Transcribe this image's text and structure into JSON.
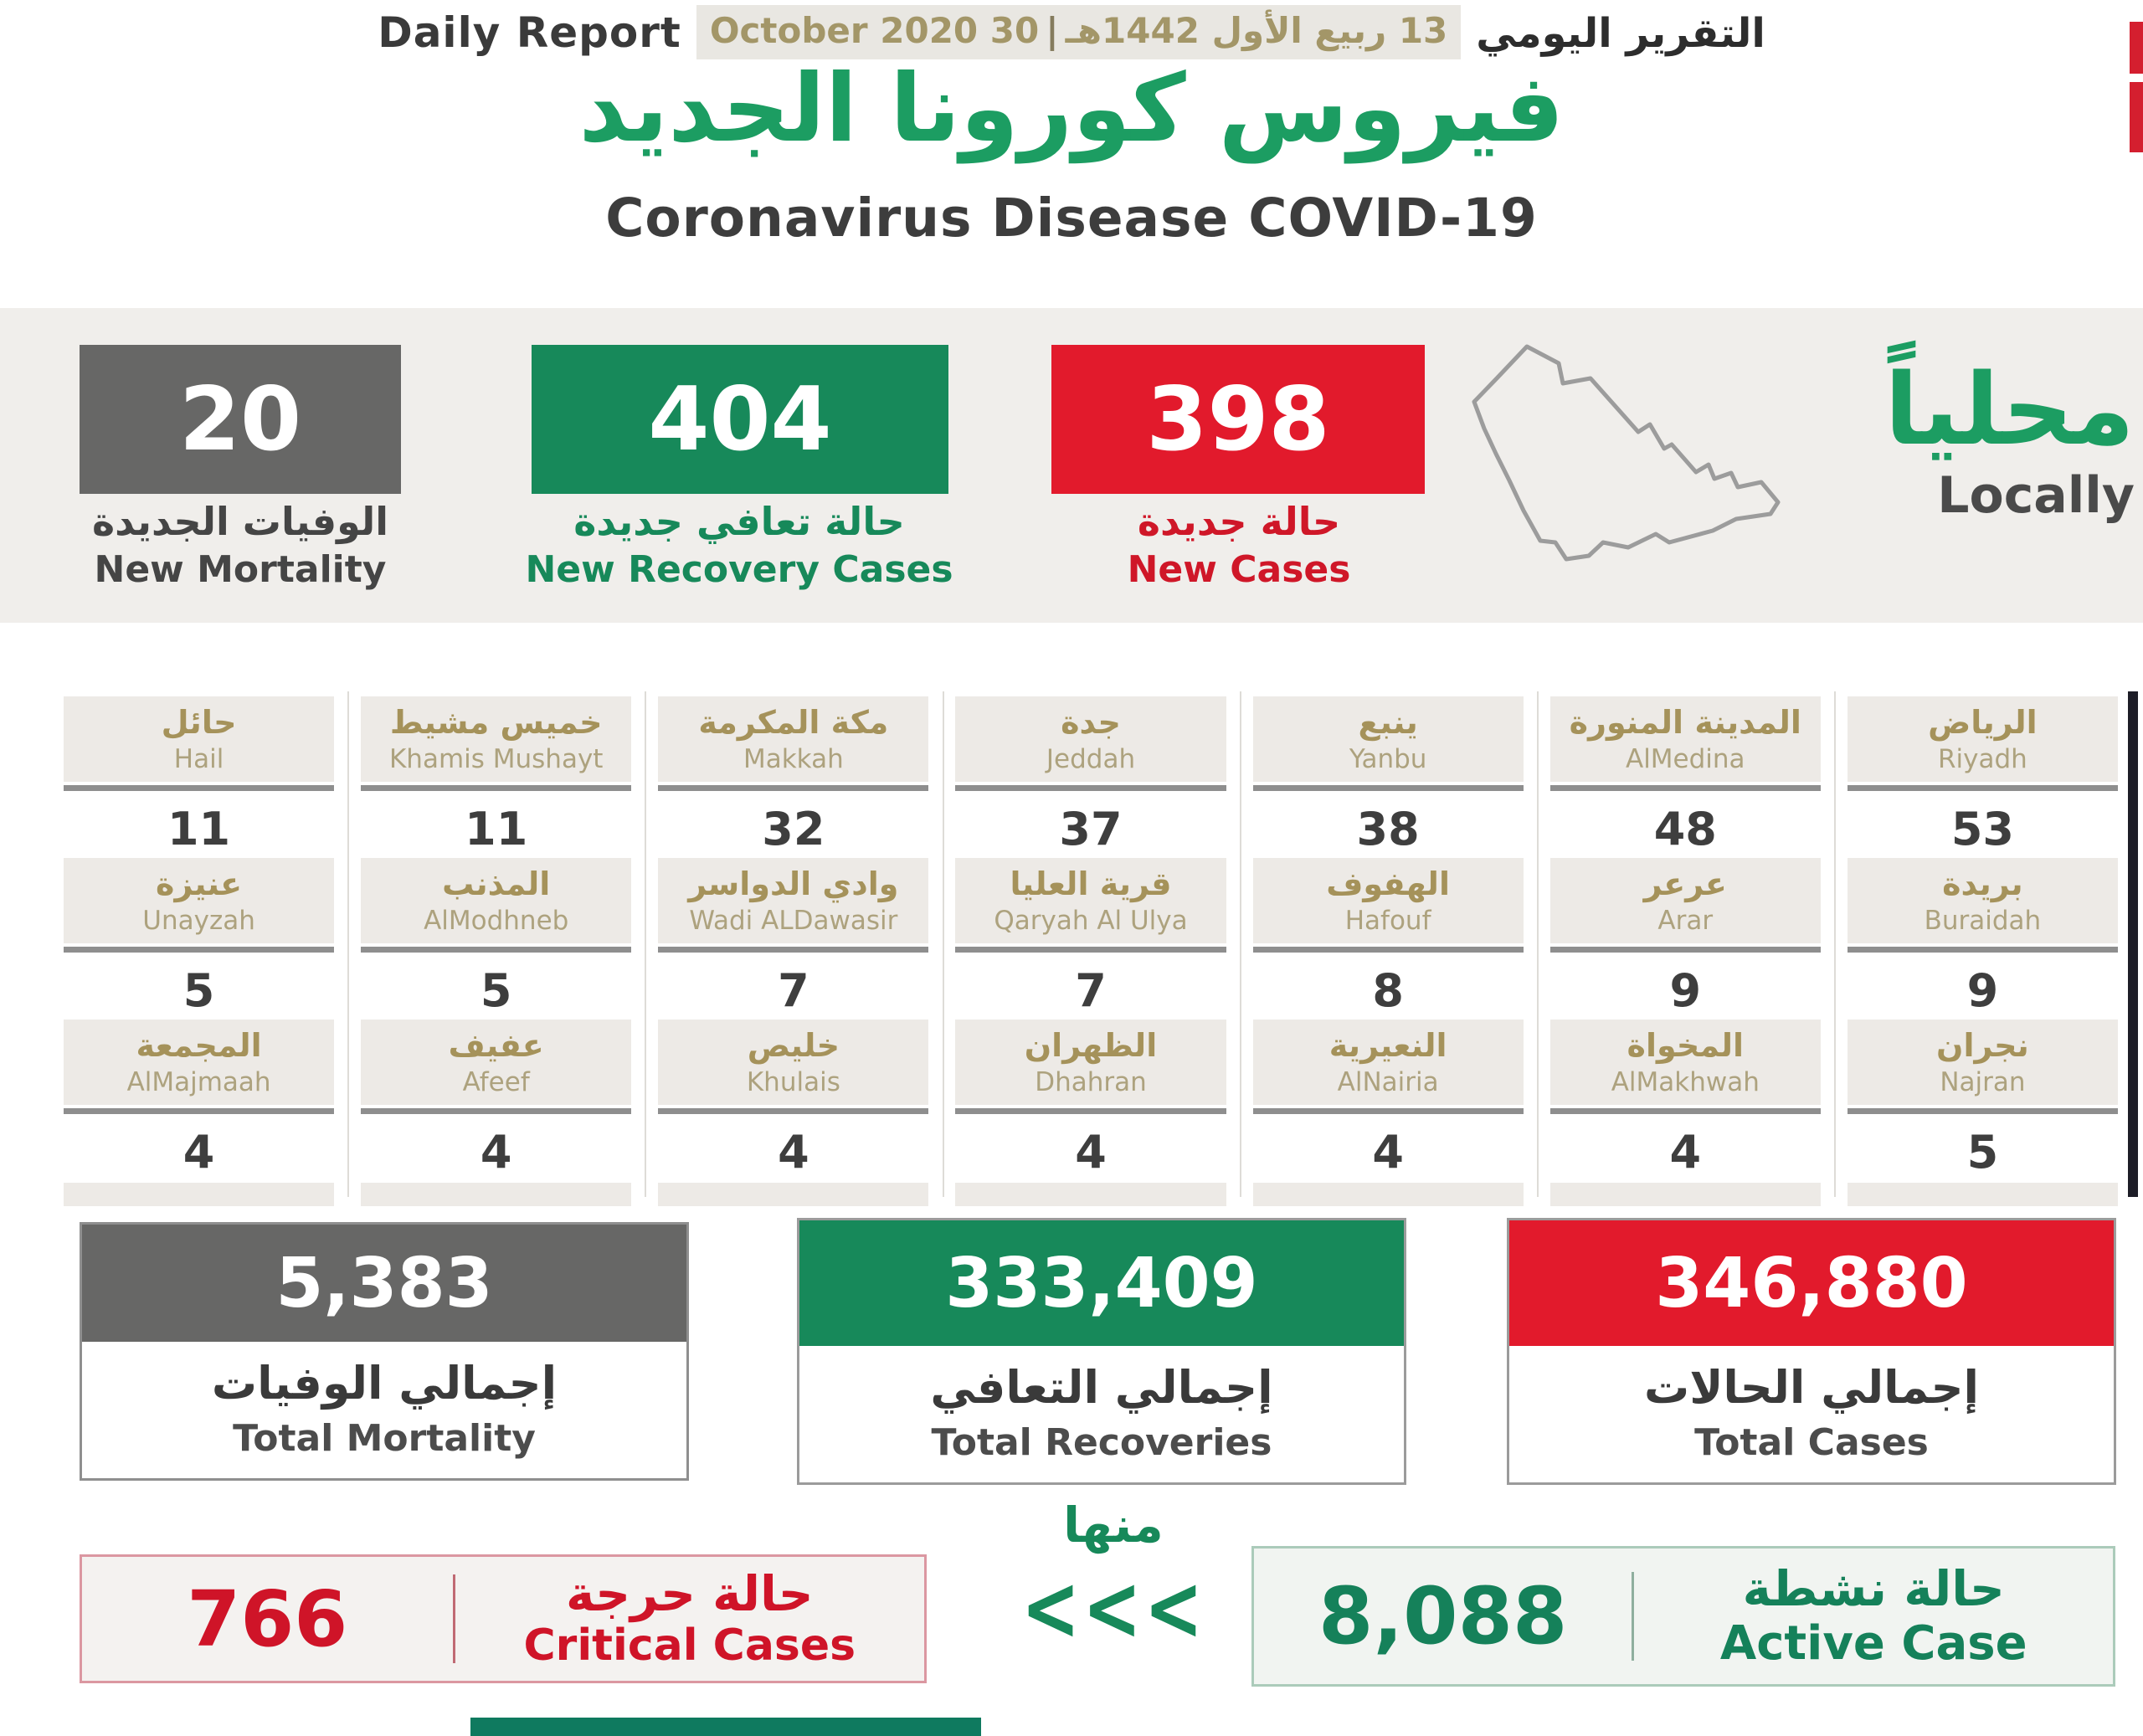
{
  "header": {
    "report_label_en": "Daily Report",
    "date_gregorian": "30 October 2020",
    "date_pipe": "|",
    "date_hijri": "13 ربيع الأول 1442هـ",
    "report_label_ar": "التقرير اليومي",
    "title_ar": "فيروس كورونا الجديد",
    "title_en": "Coronavirus Disease COVID-19"
  },
  "summary": {
    "new_mortality": {
      "value": "20",
      "label_ar": "الوفيات الجديدة",
      "label_en": "New Mortality"
    },
    "new_recovery": {
      "value": "404",
      "label_ar": "حالة تعافي جديدة",
      "label_en": "New Recovery Cases"
    },
    "new_cases": {
      "value": "398",
      "label_ar": "حالة جديدة",
      "label_en": "New Cases"
    },
    "locally_ar": "محلياً",
    "locally_en": "Locally"
  },
  "cities": {
    "rows": [
      [
        {
          "ar": "حائل",
          "en": "Hail",
          "value": "11"
        },
        {
          "ar": "خميس مشيط",
          "en": "Khamis Mushayt",
          "value": "11"
        },
        {
          "ar": "مكة المكرمة",
          "en": "Makkah",
          "value": "32"
        },
        {
          "ar": "جدة",
          "en": "Jeddah",
          "value": "37"
        },
        {
          "ar": "ينبع",
          "en": "Yanbu",
          "value": "38"
        },
        {
          "ar": "المدينة المنورة",
          "en": "AlMedina",
          "value": "48"
        },
        {
          "ar": "الرياض",
          "en": "Riyadh",
          "value": "53"
        }
      ],
      [
        {
          "ar": "عنيزة",
          "en": "Unayzah",
          "value": "5"
        },
        {
          "ar": "المذنب",
          "en": "AlModhneb",
          "value": "5"
        },
        {
          "ar": "وادي الدواسر",
          "en": "Wadi ALDawasir",
          "value": "7"
        },
        {
          "ar": "قرية العليا",
          "en": "Qaryah Al Ulya",
          "value": "7"
        },
        {
          "ar": "الهفوف",
          "en": "Hafouf",
          "value": "8"
        },
        {
          "ar": "عرعر",
          "en": "Arar",
          "value": "9"
        },
        {
          "ar": "بريدة",
          "en": "Buraidah",
          "value": "9"
        }
      ],
      [
        {
          "ar": "المجمعة",
          "en": "AlMajmaah",
          "value": "4"
        },
        {
          "ar": "عفيف",
          "en": "Afeef",
          "value": "4"
        },
        {
          "ar": "خليص",
          "en": "Khulais",
          "value": "4"
        },
        {
          "ar": "الظهران",
          "en": "Dhahran",
          "value": "4"
        },
        {
          "ar": "النعيرية",
          "en": "AlNairia",
          "value": "4"
        },
        {
          "ar": "المخواة",
          "en": "AlMakhwah",
          "value": "4"
        },
        {
          "ar": "نجران",
          "en": "Najran",
          "value": "5"
        }
      ]
    ],
    "cutoff_row_cells": 7
  },
  "totals": {
    "mortality": {
      "value": "5,383",
      "label_ar": "إجمالي الوفيات",
      "label_en": "Total Mortality"
    },
    "recoveries": {
      "value": "333,409",
      "label_ar": "إجمالي التعافي",
      "label_en": "Total Recoveries"
    },
    "cases": {
      "value": "346,880",
      "label_ar": "إجمالي الحالات",
      "label_en": "Total Cases"
    }
  },
  "footer": {
    "critical": {
      "value": "766",
      "label_ar": "حالة حرجة",
      "label_en": "Critical Cases"
    },
    "of_which_ar": "منها",
    "chevrons": "<<<",
    "active": {
      "value": "8,088",
      "label_ar": "حالة نشطة",
      "label_en": "Active Case"
    }
  },
  "colors": {
    "green": "#17895A",
    "title_green": "#1C9D62",
    "red": "#E21A2C",
    "gray_box": "#676766",
    "gold_city": "#A5925A",
    "band_bg": "#F0EEEB"
  }
}
